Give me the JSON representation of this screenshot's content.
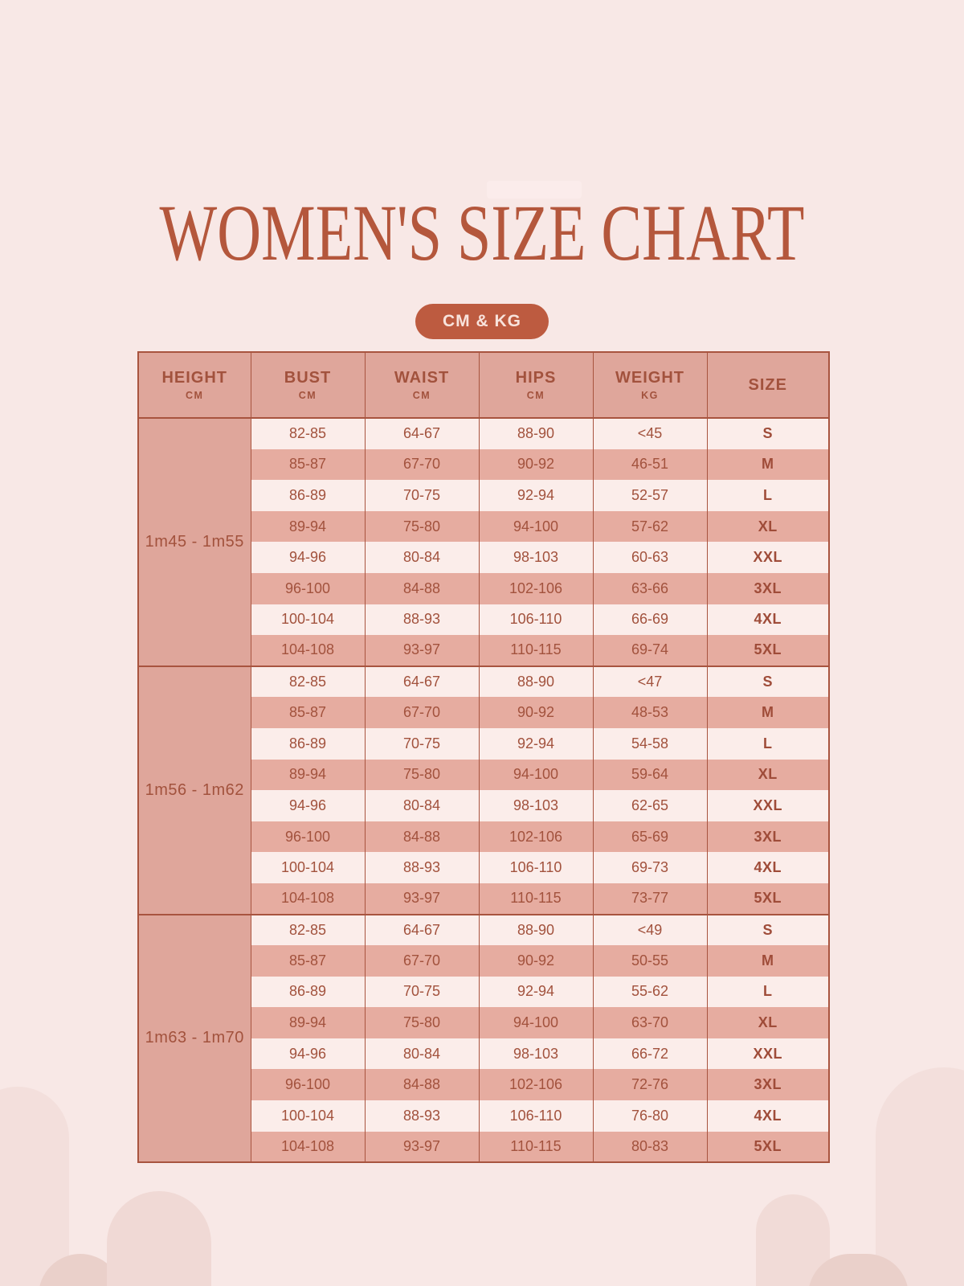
{
  "page": {
    "title": "WOMEN'S SIZE CHART",
    "badge": "CM & KG"
  },
  "colors": {
    "background": "#f8e8e6",
    "header_pink": "#dfa69b",
    "row_pink": "#e6aca0",
    "row_light": "#fbedea",
    "border_rust": "#a8543f",
    "text_rust": "#a2523d",
    "title_rust": "#b4573c",
    "badge_bg": "#bd5b40",
    "badge_text": "#f8e3dc"
  },
  "table": {
    "headers": [
      {
        "label": "HEIGHT",
        "unit": "CM"
      },
      {
        "label": "BUST",
        "unit": "CM"
      },
      {
        "label": "WAIST",
        "unit": "CM"
      },
      {
        "label": "HIPS",
        "unit": "CM"
      },
      {
        "label": "WEIGHT",
        "unit": "KG"
      },
      {
        "label": "SIZE",
        "unit": ""
      }
    ],
    "groups": [
      {
        "height": "1m45 - 1m55",
        "rows": [
          {
            "bust": "82-85",
            "waist": "64-67",
            "hips": "88-90",
            "weight": "<45",
            "size": "S"
          },
          {
            "bust": "85-87",
            "waist": "67-70",
            "hips": "90-92",
            "weight": "46-51",
            "size": "M"
          },
          {
            "bust": "86-89",
            "waist": "70-75",
            "hips": "92-94",
            "weight": "52-57",
            "size": "L"
          },
          {
            "bust": "89-94",
            "waist": "75-80",
            "hips": "94-100",
            "weight": "57-62",
            "size": "XL"
          },
          {
            "bust": "94-96",
            "waist": "80-84",
            "hips": "98-103",
            "weight": "60-63",
            "size": "XXL"
          },
          {
            "bust": "96-100",
            "waist": "84-88",
            "hips": "102-106",
            "weight": "63-66",
            "size": "3XL"
          },
          {
            "bust": "100-104",
            "waist": "88-93",
            "hips": "106-110",
            "weight": "66-69",
            "size": "4XL"
          },
          {
            "bust": "104-108",
            "waist": "93-97",
            "hips": "110-115",
            "weight": "69-74",
            "size": "5XL"
          }
        ]
      },
      {
        "height": "1m56 - 1m62",
        "rows": [
          {
            "bust": "82-85",
            "waist": "64-67",
            "hips": "88-90",
            "weight": "<47",
            "size": "S"
          },
          {
            "bust": "85-87",
            "waist": "67-70",
            "hips": "90-92",
            "weight": "48-53",
            "size": "M"
          },
          {
            "bust": "86-89",
            "waist": "70-75",
            "hips": "92-94",
            "weight": "54-58",
            "size": "L"
          },
          {
            "bust": "89-94",
            "waist": "75-80",
            "hips": "94-100",
            "weight": "59-64",
            "size": "XL"
          },
          {
            "bust": "94-96",
            "waist": "80-84",
            "hips": "98-103",
            "weight": "62-65",
            "size": "XXL"
          },
          {
            "bust": "96-100",
            "waist": "84-88",
            "hips": "102-106",
            "weight": "65-69",
            "size": "3XL"
          },
          {
            "bust": "100-104",
            "waist": "88-93",
            "hips": "106-110",
            "weight": "69-73",
            "size": "4XL"
          },
          {
            "bust": "104-108",
            "waist": "93-97",
            "hips": "110-115",
            "weight": "73-77",
            "size": "5XL"
          }
        ]
      },
      {
        "height": "1m63 - 1m70",
        "rows": [
          {
            "bust": "82-85",
            "waist": "64-67",
            "hips": "88-90",
            "weight": "<49",
            "size": "S"
          },
          {
            "bust": "85-87",
            "waist": "67-70",
            "hips": "90-92",
            "weight": "50-55",
            "size": "M"
          },
          {
            "bust": "86-89",
            "waist": "70-75",
            "hips": "92-94",
            "weight": "55-62",
            "size": "L"
          },
          {
            "bust": "89-94",
            "waist": "75-80",
            "hips": "94-100",
            "weight": "63-70",
            "size": "XL"
          },
          {
            "bust": "94-96",
            "waist": "80-84",
            "hips": "98-103",
            "weight": "66-72",
            "size": "XXL"
          },
          {
            "bust": "96-100",
            "waist": "84-88",
            "hips": "102-106",
            "weight": "72-76",
            "size": "3XL"
          },
          {
            "bust": "100-104",
            "waist": "88-93",
            "hips": "106-110",
            "weight": "76-80",
            "size": "4XL"
          },
          {
            "bust": "104-108",
            "waist": "93-97",
            "hips": "110-115",
            "weight": "80-83",
            "size": "5XL"
          }
        ]
      }
    ]
  },
  "chart_data": {
    "type": "table",
    "title": "WOMEN'S SIZE CHART",
    "units_badge": "CM & KG",
    "columns": [
      "HEIGHT CM",
      "BUST CM",
      "WAIST CM",
      "HIPS CM",
      "WEIGHT KG",
      "SIZE"
    ],
    "rows": [
      [
        "1m45 - 1m55",
        "82-85",
        "64-67",
        "88-90",
        "<45",
        "S"
      ],
      [
        "1m45 - 1m55",
        "85-87",
        "67-70",
        "90-92",
        "46-51",
        "M"
      ],
      [
        "1m45 - 1m55",
        "86-89",
        "70-75",
        "92-94",
        "52-57",
        "L"
      ],
      [
        "1m45 - 1m55",
        "89-94",
        "75-80",
        "94-100",
        "57-62",
        "XL"
      ],
      [
        "1m45 - 1m55",
        "94-96",
        "80-84",
        "98-103",
        "60-63",
        "XXL"
      ],
      [
        "1m45 - 1m55",
        "96-100",
        "84-88",
        "102-106",
        "63-66",
        "3XL"
      ],
      [
        "1m45 - 1m55",
        "100-104",
        "88-93",
        "106-110",
        "66-69",
        "4XL"
      ],
      [
        "1m45 - 1m55",
        "104-108",
        "93-97",
        "110-115",
        "69-74",
        "5XL"
      ],
      [
        "1m56 - 1m62",
        "82-85",
        "64-67",
        "88-90",
        "<47",
        "S"
      ],
      [
        "1m56 - 1m62",
        "85-87",
        "67-70",
        "90-92",
        "48-53",
        "M"
      ],
      [
        "1m56 - 1m62",
        "86-89",
        "70-75",
        "92-94",
        "54-58",
        "L"
      ],
      [
        "1m56 - 1m62",
        "89-94",
        "75-80",
        "94-100",
        "59-64",
        "XL"
      ],
      [
        "1m56 - 1m62",
        "94-96",
        "80-84",
        "98-103",
        "62-65",
        "XXL"
      ],
      [
        "1m56 - 1m62",
        "96-100",
        "84-88",
        "102-106",
        "65-69",
        "3XL"
      ],
      [
        "1m56 - 1m62",
        "100-104",
        "88-93",
        "106-110",
        "69-73",
        "4XL"
      ],
      [
        "1m56 - 1m62",
        "104-108",
        "93-97",
        "110-115",
        "73-77",
        "5XL"
      ],
      [
        "1m63 - 1m70",
        "82-85",
        "64-67",
        "88-90",
        "<49",
        "S"
      ],
      [
        "1m63 - 1m70",
        "85-87",
        "67-70",
        "90-92",
        "50-55",
        "M"
      ],
      [
        "1m63 - 1m70",
        "86-89",
        "70-75",
        "92-94",
        "55-62",
        "L"
      ],
      [
        "1m63 - 1m70",
        "89-94",
        "75-80",
        "94-100",
        "63-70",
        "XL"
      ],
      [
        "1m63 - 1m70",
        "94-96",
        "80-84",
        "98-103",
        "66-72",
        "XXL"
      ],
      [
        "1m63 - 1m70",
        "96-100",
        "84-88",
        "102-106",
        "72-76",
        "3XL"
      ],
      [
        "1m63 - 1m70",
        "100-104",
        "88-93",
        "106-110",
        "76-80",
        "4XL"
      ],
      [
        "1m63 - 1m70",
        "104-108",
        "93-97",
        "110-115",
        "80-83",
        "5XL"
      ]
    ]
  }
}
